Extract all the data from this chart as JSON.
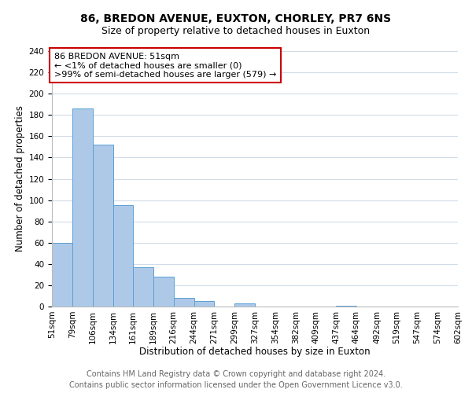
{
  "title": "86, BREDON AVENUE, EUXTON, CHORLEY, PR7 6NS",
  "subtitle": "Size of property relative to detached houses in Euxton",
  "xlabel": "Distribution of detached houses by size in Euxton",
  "ylabel": "Number of detached properties",
  "bin_labels": [
    "51sqm",
    "79sqm",
    "106sqm",
    "134sqm",
    "161sqm",
    "189sqm",
    "216sqm",
    "244sqm",
    "271sqm",
    "299sqm",
    "327sqm",
    "354sqm",
    "382sqm",
    "409sqm",
    "437sqm",
    "464sqm",
    "492sqm",
    "519sqm",
    "547sqm",
    "574sqm",
    "602sqm"
  ],
  "bin_edges": [
    51,
    79,
    106,
    134,
    161,
    189,
    216,
    244,
    271,
    299,
    327,
    354,
    382,
    409,
    437,
    464,
    492,
    519,
    547,
    574,
    602
  ],
  "counts": [
    60,
    186,
    152,
    95,
    37,
    28,
    8,
    5,
    0,
    3,
    0,
    0,
    0,
    0,
    1,
    0,
    0,
    0,
    0,
    0,
    1
  ],
  "bar_color": "#aec9e8",
  "bar_edge_color": "#5a9fd4",
  "annotation_box_text": "86 BREDON AVENUE: 51sqm\n← <1% of detached houses are smaller (0)\n>99% of semi-detached houses are larger (579) →",
  "annotation_box_color": "#ffffff",
  "annotation_box_edge_color": "#cc0000",
  "ylim": [
    0,
    240
  ],
  "yticks": [
    0,
    20,
    40,
    60,
    80,
    100,
    120,
    140,
    160,
    180,
    200,
    220,
    240
  ],
  "footer_line1": "Contains HM Land Registry data © Crown copyright and database right 2024.",
  "footer_line2": "Contains public sector information licensed under the Open Government Licence v3.0.",
  "bg_color": "#ffffff",
  "grid_color": "#d0dce8",
  "title_fontsize": 10,
  "subtitle_fontsize": 9,
  "axis_label_fontsize": 8.5,
  "tick_fontsize": 7.5,
  "annotation_fontsize": 8,
  "footer_fontsize": 7
}
